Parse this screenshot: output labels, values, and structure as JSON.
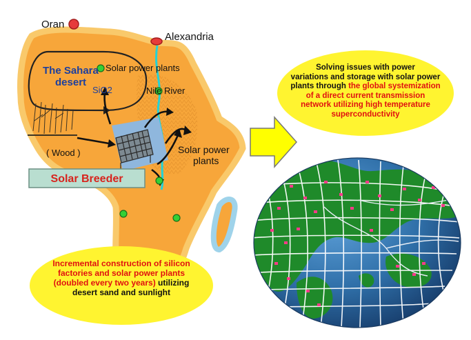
{
  "map_labels": {
    "oran": "Oran",
    "alexandria": "Alexandria",
    "sahara": "The Sahara\ndesert",
    "sio2": "SiO2",
    "solar_plants_north": "Solar power plants",
    "nile": "Nile River",
    "solar_plants_east": "Solar power\nplants",
    "wood": "( Wood )",
    "solar_breeder": "Solar Breeder"
  },
  "callout_top": {
    "l1": "Solving issues with power",
    "l2": "variations and storage with solar power",
    "l3a": "plants through ",
    "l3b": "the global systemization",
    "l4": "of a direct current transmission",
    "l5": "network utilizing high temperature",
    "l6": "superconductivity"
  },
  "callout_bottom": {
    "l1": "Incremental construction of silicon",
    "l2": "factories and solar power plants",
    "l3a": "(doubled every two years)",
    "l3b": " utilizing",
    "l4": "desert sand and sunlight"
  },
  "colors": {
    "africa": "#f7a63a",
    "africa_edge": "#f9c96b",
    "ocean": "#2f6fa8",
    "land_green": "#1f8a2a",
    "grid": "#ffffff",
    "city_red": "#e63b3b",
    "plant_green": "#35d035",
    "callout_yellow": "#fff430",
    "breeder_bg": "#b9ded0",
    "breeder_text": "#d8231d",
    "sahara_text": "#1c3f9e",
    "arrow_yellow": "#ffff00",
    "nile": "#22d3d8"
  }
}
